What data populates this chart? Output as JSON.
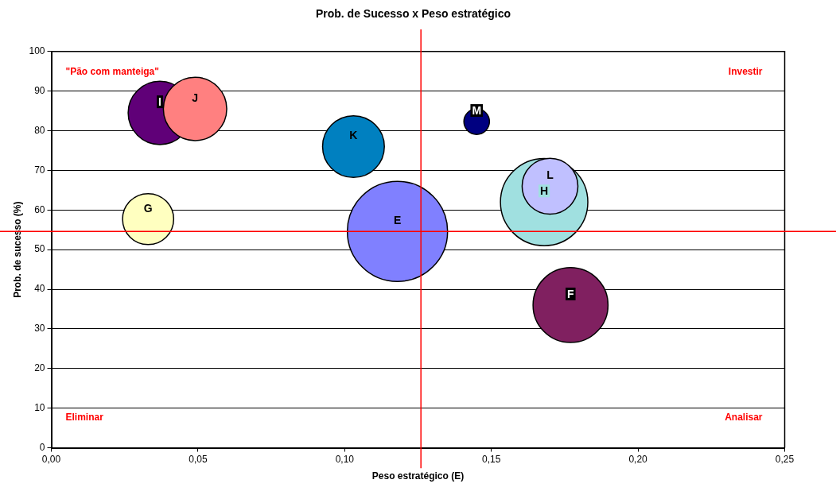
{
  "chart_data": {
    "type": "bubble",
    "title": "Prob. de Sucesso x Peso estratégico",
    "xlabel": "Peso estratégico (E)",
    "ylabel": "Prob. de sucesso (%)",
    "xlim": [
      0,
      0.25
    ],
    "xticks": [
      {
        "value": 0,
        "label": "0,00"
      },
      {
        "value": 0.05,
        "label": "0,05"
      },
      {
        "value": 0.1,
        "label": "0,10"
      },
      {
        "value": 0.15,
        "label": "0,15"
      },
      {
        "value": 0.2,
        "label": "0,20"
      },
      {
        "value": 0.25,
        "label": "0,25"
      }
    ],
    "ylim": [
      0,
      100
    ],
    "yticks": [
      0,
      10,
      20,
      30,
      40,
      50,
      60,
      70,
      80,
      90,
      100
    ],
    "grid": "y",
    "legend": false,
    "series": [
      {
        "name": "I",
        "color": "#600078",
        "x": [
          0.037
        ],
        "values": [
          84.5
        ],
        "sizes": [
          0.4
        ]
      },
      {
        "name": "J",
        "color": "#ff8080",
        "x": [
          0.049
        ],
        "values": [
          85.5
        ],
        "sizes": [
          0.4
        ]
      },
      {
        "name": "K",
        "color": "#0080c0",
        "x": [
          0.103
        ],
        "values": [
          76
        ],
        "sizes": [
          0.38
        ]
      },
      {
        "name": "M",
        "color": "#000080",
        "x": [
          0.145
        ],
        "values": [
          82.3
        ],
        "sizes": [
          0.065
        ]
      },
      {
        "name": "G",
        "color": "#ffffc0",
        "x": [
          0.033
        ],
        "values": [
          57.7
        ],
        "sizes": [
          0.26
        ]
      },
      {
        "name": "E",
        "color": "#8080ff",
        "x": [
          0.118
        ],
        "values": [
          54.6
        ],
        "sizes": [
          1
        ]
      },
      {
        "name": "H",
        "color": "#a0e0e0",
        "x": [
          0.168
        ],
        "values": [
          62
        ],
        "sizes": [
          0.76
        ]
      },
      {
        "name": "L",
        "color": "#c0c0ff",
        "x": [
          0.17
        ],
        "values": [
          66
        ],
        "sizes": [
          0.31
        ]
      },
      {
        "name": "F",
        "color": "#802060",
        "x": [
          0.177
        ],
        "values": [
          36
        ],
        "sizes": [
          0.56
        ]
      }
    ],
    "ref_lines": [
      {
        "axis": "x",
        "value": 0.126,
        "color": "#ff0000"
      },
      {
        "axis": "y",
        "value": 54.6,
        "color": "#ff0000"
      }
    ],
    "annotations": [
      "\"Pão com manteiga\"",
      "Investir",
      "Eliminar",
      "Analisar"
    ]
  }
}
